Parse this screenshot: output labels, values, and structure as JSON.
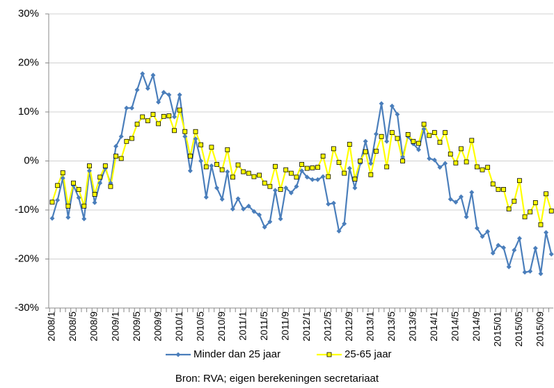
{
  "chart_data": {
    "type": "line",
    "categories": [
      "2008/1",
      null,
      null,
      null,
      "2008/5",
      null,
      null,
      null,
      "2008/9",
      null,
      null,
      null,
      "2009/1",
      null,
      null,
      null,
      "2009/5",
      null,
      null,
      null,
      "2009/9",
      null,
      null,
      null,
      "2010/1",
      null,
      null,
      null,
      "2010/5",
      null,
      null,
      null,
      "2010/9",
      null,
      null,
      null,
      "2011/1",
      null,
      null,
      null,
      "2011/5",
      null,
      null,
      null,
      "2011/9",
      null,
      null,
      null,
      "2012/1",
      null,
      null,
      null,
      "2012/5",
      null,
      null,
      null,
      "2012/9",
      null,
      null,
      null,
      "2013/1",
      null,
      null,
      null,
      "2013/5",
      null,
      null,
      null,
      "2013/9",
      null,
      null,
      null,
      "2014/1",
      null,
      null,
      null,
      "2014/5",
      null,
      null,
      null,
      "2014/9",
      null,
      null,
      null,
      "2015/01",
      null,
      null,
      null,
      "2015/05",
      null,
      null,
      null,
      "2015/09",
      null,
      null
    ],
    "series": [
      {
        "name": "Minder dan 25 jaar",
        "color": "#4a7ebb",
        "marker": "diamond",
        "values": [
          -11.7,
          -8,
          -3.5,
          -11.5,
          -5,
          -7.5,
          -11.8,
          -2,
          -8.5,
          -4.5,
          -1.5,
          -4.5,
          3,
          5,
          10.8,
          10.8,
          14.5,
          17.8,
          14.8,
          17.5,
          12,
          14,
          13.5,
          9,
          13.5,
          5,
          -2,
          4.5,
          0,
          -7.4,
          -1,
          -5.5,
          -7.8,
          -2.2,
          -9.8,
          -7.7,
          -9.8,
          -9.2,
          -10.3,
          -11,
          -13.5,
          -12.4,
          -6,
          -11.8,
          -5.5,
          -6.5,
          -5.2,
          -2,
          -3.3,
          -3.8,
          -3.8,
          -3.2,
          -8.8,
          -8.6,
          -14.3,
          -12.8,
          -1.5,
          -5.5,
          -0.5,
          4,
          -0.5,
          5.5,
          11.7,
          4,
          11.2,
          9.5,
          0.8,
          5,
          3.5,
          2.3,
          6.5,
          0.5,
          0.2,
          -1.3,
          -0.5,
          -7.8,
          -8.4,
          -7.3,
          -11.4,
          -6.4,
          -13.7,
          -15.4,
          -14.4,
          -18.8,
          -17.2,
          -17.7,
          -21.6,
          -18.2,
          -15.8,
          -22.7,
          -22.5,
          -17.8,
          -23,
          -14.6,
          -19
        ]
      },
      {
        "name": "25-65 jaar",
        "color": "#ffff00",
        "marker": "square",
        "values": [
          -8.4,
          -5,
          -2.4,
          -9.2,
          -4.5,
          -5.8,
          -9.2,
          -1,
          -6.8,
          -3.3,
          -1,
          -5.2,
          1,
          0.5,
          4,
          4.6,
          7.5,
          9,
          8.2,
          9.5,
          7.6,
          9.1,
          9.2,
          6.2,
          10.4,
          6,
          1,
          6,
          3.3,
          -1.2,
          2.8,
          -0.7,
          -1.8,
          2.3,
          -3.3,
          -0.8,
          -2.2,
          -2.5,
          -3.2,
          -2.9,
          -4.5,
          -5.2,
          -1.1,
          -5.8,
          -1.8,
          -2.5,
          -3.3,
          -0.7,
          -1.5,
          -1.4,
          -1.3,
          1,
          -3.2,
          2.5,
          -0.3,
          -2.5,
          3.4,
          -3.7,
          0,
          1.9,
          -2.8,
          2,
          5,
          -1.2,
          5.8,
          4.6,
          0,
          5.4,
          4,
          3.6,
          7.5,
          5.2,
          5.8,
          3.8,
          5.8,
          1.4,
          -0.4,
          2.5,
          -0.2,
          4.2,
          -1.2,
          -1.8,
          -1.3,
          -4.7,
          -5.8,
          -5.8,
          -9.8,
          -8.2,
          -4,
          -11.4,
          -10.4,
          -8.5,
          -13,
          -6.7,
          -10.2
        ]
      }
    ],
    "ylim": [
      -30,
      30
    ],
    "yticks": [
      {
        "value": -30,
        "label": "-30%"
      },
      {
        "value": -20,
        "label": "-20%"
      },
      {
        "value": -10,
        "label": "-10%"
      },
      {
        "value": 0,
        "label": "0%"
      },
      {
        "value": 10,
        "label": "10%"
      },
      {
        "value": 20,
        "label": "20%"
      },
      {
        "value": 30,
        "label": "30%"
      }
    ],
    "grid": true,
    "legend": "bottom",
    "source": "Bron: RVA; eigen berekeningen secretariaat"
  }
}
